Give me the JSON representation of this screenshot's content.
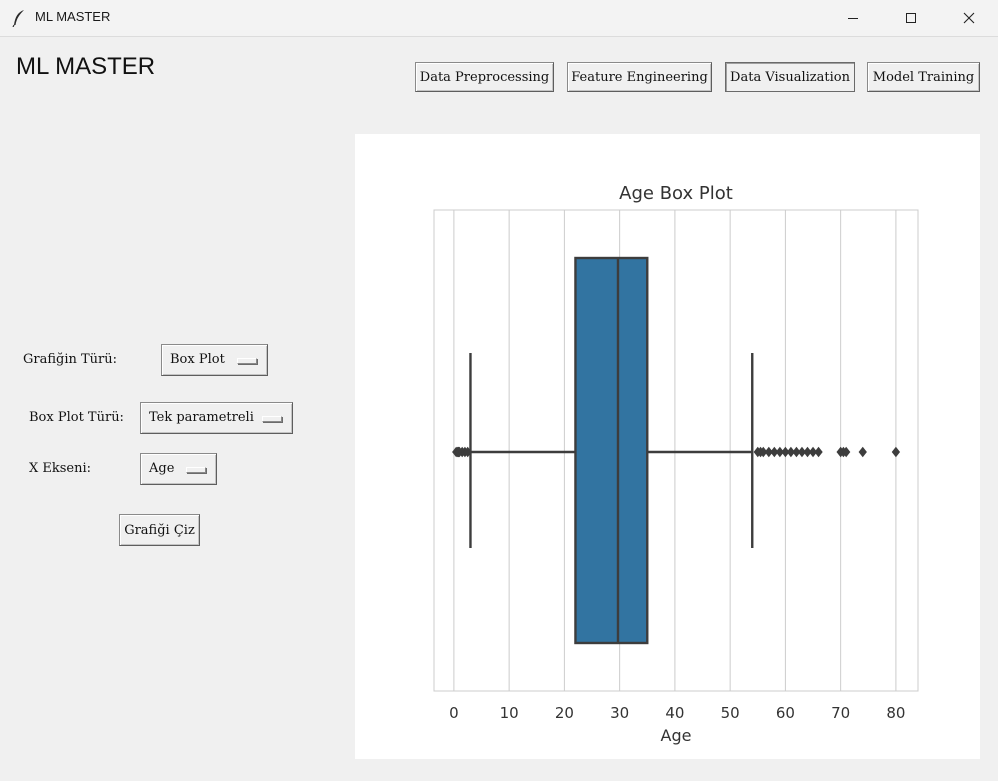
{
  "window": {
    "title": "ML MASTER",
    "icon": "feather-icon"
  },
  "heading": "ML MASTER",
  "nav": {
    "buttons": [
      {
        "label": "Data Preprocessing"
      },
      {
        "label": "Feature Engineering"
      },
      {
        "label": "Data Visualization"
      },
      {
        "label": "Model Training"
      }
    ],
    "active": "Data Visualization"
  },
  "controls": {
    "chart_type_label": "Grafiğin Türü:",
    "chart_type_value": "Box Plot",
    "boxplot_type_label": "Box Plot Türü:",
    "boxplot_type_value": "Tek parametreli",
    "x_axis_label": "X Ekseni:",
    "x_axis_value": "Age",
    "draw_button": "Grafiği Çiz"
  },
  "chart_data": {
    "type": "box",
    "orientation": "horizontal",
    "title": "Age Box Plot",
    "xlabel": "Age",
    "ylabel": "",
    "xlim": [
      -3.6,
      84.0
    ],
    "xticks": [
      0,
      10,
      20,
      30,
      40,
      50,
      60,
      70,
      80
    ],
    "grid": "vertical",
    "color": "#3274a1",
    "edge_color": "#3d3d3d",
    "box": {
      "whisker_low": 3,
      "q1": 22,
      "median": 29.7,
      "q3": 35,
      "whisker_high": 54
    },
    "outliers": [
      0.42,
      0.67,
      0.75,
      0.83,
      0.92,
      1,
      1.5,
      2,
      2.5,
      55,
      55.5,
      56,
      57,
      58,
      59,
      60,
      61,
      62,
      63,
      64,
      65,
      66,
      70,
      70.5,
      71,
      74,
      80
    ]
  }
}
